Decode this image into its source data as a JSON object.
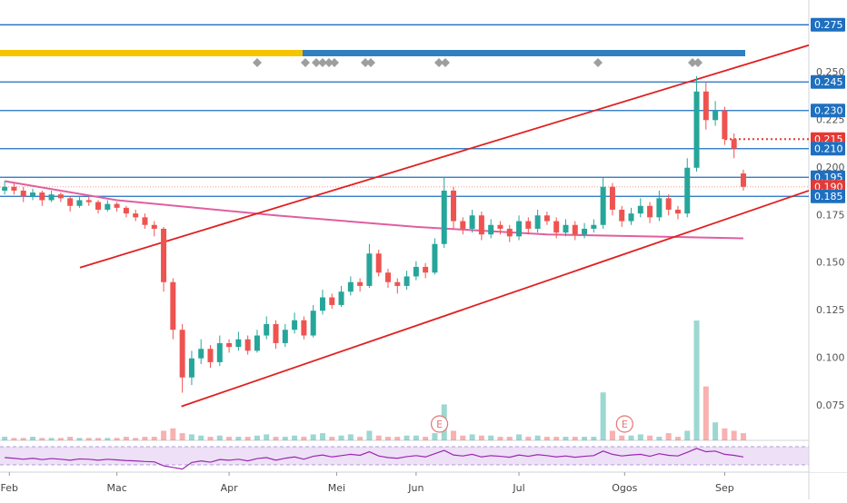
{
  "chart_data": {
    "type": "candlestick",
    "up_color": "#26a69a",
    "down_color": "#ef5350",
    "x": [
      0,
      1,
      2,
      3,
      4,
      5,
      6,
      7,
      8,
      9,
      10,
      11,
      12,
      13,
      14,
      15,
      16,
      17,
      18,
      19,
      20,
      21,
      22,
      23,
      24,
      25,
      26,
      27,
      28,
      29,
      30,
      31,
      32,
      33,
      34,
      35,
      36,
      37,
      38,
      39,
      40,
      41,
      42,
      43,
      44,
      45,
      46,
      47,
      48,
      49,
      50,
      51,
      52,
      53,
      54,
      55,
      56,
      57,
      58,
      59,
      60,
      61,
      62,
      63,
      64,
      65,
      66,
      67,
      68,
      69,
      70,
      71,
      72,
      73,
      74,
      75,
      76,
      77,
      78,
      79
    ],
    "open": [
      0.188,
      0.19,
      0.188,
      0.185,
      0.187,
      0.183,
      0.186,
      0.184,
      0.18,
      0.183,
      0.182,
      0.178,
      0.181,
      0.179,
      0.176,
      0.174,
      0.17,
      0.168,
      0.14,
      0.115,
      0.09,
      0.1,
      0.105,
      0.098,
      0.108,
      0.106,
      0.11,
      0.104,
      0.112,
      0.118,
      0.108,
      0.115,
      0.12,
      0.112,
      0.125,
      0.132,
      0.128,
      0.135,
      0.14,
      0.138,
      0.155,
      0.145,
      0.14,
      0.138,
      0.143,
      0.148,
      0.145,
      0.16,
      0.188,
      0.172,
      0.168,
      0.175,
      0.165,
      0.17,
      0.168,
      0.164,
      0.172,
      0.168,
      0.175,
      0.172,
      0.166,
      0.17,
      0.165,
      0.168,
      0.17,
      0.19,
      0.178,
      0.172,
      0.176,
      0.18,
      0.174,
      0.184,
      0.178,
      0.176,
      0.2,
      0.24,
      0.225,
      0.23,
      0.215,
      0.197
    ],
    "high": [
      0.193,
      0.192,
      0.19,
      0.189,
      0.188,
      0.188,
      0.187,
      0.185,
      0.185,
      0.185,
      0.183,
      0.183,
      0.182,
      0.18,
      0.178,
      0.176,
      0.172,
      0.169,
      0.142,
      0.118,
      0.104,
      0.11,
      0.107,
      0.112,
      0.11,
      0.114,
      0.112,
      0.115,
      0.122,
      0.12,
      0.118,
      0.124,
      0.122,
      0.128,
      0.136,
      0.134,
      0.138,
      0.143,
      0.142,
      0.16,
      0.157,
      0.147,
      0.142,
      0.146,
      0.151,
      0.15,
      0.163,
      0.195,
      0.19,
      0.174,
      0.178,
      0.177,
      0.173,
      0.172,
      0.17,
      0.175,
      0.174,
      0.178,
      0.177,
      0.174,
      0.173,
      0.172,
      0.171,
      0.173,
      0.195,
      0.192,
      0.18,
      0.179,
      0.184,
      0.182,
      0.188,
      0.186,
      0.18,
      0.205,
      0.248,
      0.245,
      0.235,
      0.232,
      0.218,
      0.199
    ],
    "low": [
      0.186,
      0.186,
      0.182,
      0.183,
      0.18,
      0.182,
      0.182,
      0.177,
      0.179,
      0.18,
      0.176,
      0.177,
      0.177,
      0.174,
      0.172,
      0.168,
      0.164,
      0.135,
      0.11,
      0.082,
      0.086,
      0.097,
      0.095,
      0.096,
      0.103,
      0.104,
      0.102,
      0.103,
      0.11,
      0.105,
      0.106,
      0.113,
      0.11,
      0.111,
      0.123,
      0.126,
      0.127,
      0.133,
      0.135,
      0.137,
      0.143,
      0.137,
      0.134,
      0.136,
      0.141,
      0.142,
      0.144,
      0.158,
      0.168,
      0.165,
      0.166,
      0.162,
      0.163,
      0.165,
      0.161,
      0.162,
      0.165,
      0.166,
      0.17,
      0.163,
      0.164,
      0.162,
      0.163,
      0.166,
      0.168,
      0.175,
      0.169,
      0.17,
      0.174,
      0.171,
      0.172,
      0.175,
      0.173,
      0.174,
      0.198,
      0.22,
      0.222,
      0.212,
      0.205,
      0.188
    ],
    "close": [
      0.19,
      0.188,
      0.185,
      0.187,
      0.183,
      0.186,
      0.184,
      0.18,
      0.183,
      0.182,
      0.178,
      0.181,
      0.179,
      0.176,
      0.174,
      0.17,
      0.168,
      0.14,
      0.115,
      0.09,
      0.1,
      0.105,
      0.098,
      0.108,
      0.106,
      0.11,
      0.104,
      0.112,
      0.118,
      0.108,
      0.115,
      0.12,
      0.112,
      0.125,
      0.132,
      0.128,
      0.135,
      0.14,
      0.138,
      0.155,
      0.145,
      0.14,
      0.138,
      0.143,
      0.148,
      0.145,
      0.16,
      0.188,
      0.172,
      0.168,
      0.175,
      0.165,
      0.17,
      0.168,
      0.164,
      0.172,
      0.168,
      0.175,
      0.172,
      0.166,
      0.17,
      0.165,
      0.168,
      0.17,
      0.19,
      0.178,
      0.172,
      0.176,
      0.18,
      0.174,
      0.184,
      0.178,
      0.176,
      0.2,
      0.24,
      0.225,
      0.23,
      0.215,
      0.21,
      0.19
    ],
    "xlim": [
      -0.5,
      86
    ],
    "ylim": [
      0.057,
      0.288
    ],
    "yticks": [
      {
        "value": 0.25,
        "label": "0.250"
      },
      {
        "value": 0.225,
        "label": "0.225"
      },
      {
        "value": 0.2,
        "label": "0.200"
      },
      {
        "value": 0.175,
        "label": "0.175"
      },
      {
        "value": 0.15,
        "label": "0.150"
      },
      {
        "value": 0.125,
        "label": "0.125"
      },
      {
        "value": 0.1,
        "label": "0.100"
      },
      {
        "value": 0.075,
        "label": "0.075"
      }
    ],
    "xticks": [
      {
        "value": 0.5,
        "label": "Feb"
      },
      {
        "value": 12,
        "label": "Mac"
      },
      {
        "value": 24,
        "label": "Apr"
      },
      {
        "value": 35.5,
        "label": "Mei"
      },
      {
        "value": 44,
        "label": "Jun"
      },
      {
        "value": 55,
        "label": "Jul"
      },
      {
        "value": 66.3,
        "label": "Ogos"
      },
      {
        "value": 77,
        "label": "Sep"
      }
    ],
    "levels": [
      {
        "value": 0.275,
        "label": "0.275",
        "color": "#1e6fbf",
        "style": "solid"
      },
      {
        "value": 0.245,
        "label": "0.245",
        "color": "#1e6fbf",
        "style": "solid"
      },
      {
        "value": 0.23,
        "label": "0.230",
        "color": "#1e6fbf",
        "style": "solid"
      },
      {
        "value": 0.215,
        "label": "0.215",
        "color": "#e53935",
        "style": "dotted"
      },
      {
        "value": 0.21,
        "label": "0.210",
        "color": "#1e6fbf",
        "style": "solid"
      },
      {
        "value": 0.195,
        "label": "0.195",
        "color": "#1e6fbf",
        "style": "solid"
      },
      {
        "value": 0.19,
        "label": "0.190",
        "color": "#e53935",
        "style": "faint"
      },
      {
        "value": 0.185,
        "label": "0.185",
        "color": "#1e6fbf",
        "style": "solid"
      }
    ],
    "trend_lines": [
      {
        "x": [
          8.05,
          86
        ],
        "y": [
          0.1476,
          0.2643
        ],
        "color": "#e02020"
      },
      {
        "x": [
          18.9,
          86
        ],
        "y": [
          0.0748,
          0.188
        ],
        "color": "#e02020"
      }
    ],
    "ma": {
      "x": [
        0,
        12,
        29,
        44,
        58,
        79
      ],
      "values": [
        0.193,
        0.183,
        0.175,
        0.169,
        0.165,
        0.163
      ],
      "color": "#e05fa0"
    },
    "volume": [
      3,
      2,
      2,
      3,
      2,
      2,
      2,
      3,
      2,
      2,
      2,
      2,
      2,
      3,
      2,
      3,
      3,
      8,
      10,
      6,
      5,
      4,
      3,
      4,
      3,
      3,
      3,
      4,
      5,
      3,
      3,
      4,
      3,
      5,
      6,
      3,
      4,
      5,
      3,
      8,
      4,
      3,
      3,
      4,
      4,
      3,
      6,
      30,
      8,
      4,
      5,
      4,
      4,
      3,
      3,
      5,
      3,
      4,
      3,
      3,
      3,
      3,
      3,
      3,
      40,
      8,
      4,
      4,
      5,
      4,
      3,
      6,
      3,
      8,
      100,
      45,
      15,
      10,
      8,
      6
    ],
    "rsi": {
      "values": [
        50,
        48,
        45,
        48,
        44,
        47,
        45,
        42,
        46,
        45,
        42,
        45,
        43,
        41,
        40,
        38,
        37,
        25,
        20,
        15,
        35,
        40,
        36,
        44,
        42,
        45,
        40,
        47,
        50,
        42,
        48,
        52,
        45,
        54,
        58,
        52,
        56,
        60,
        57,
        68,
        55,
        50,
        48,
        53,
        56,
        52,
        62,
        72,
        58,
        55,
        60,
        52,
        56,
        54,
        51,
        58,
        54,
        59,
        56,
        52,
        55,
        51,
        54,
        56,
        70,
        60,
        55,
        58,
        60,
        54,
        62,
        57,
        55,
        66,
        78,
        68,
        70,
        60,
        57,
        52
      ],
      "ylim": [
        0,
        100
      ],
      "color": "#9c27b0"
    },
    "events": [
      {
        "x": 46.5,
        "label": "E"
      },
      {
        "x": 66.3,
        "label": "E"
      }
    ]
  }
}
